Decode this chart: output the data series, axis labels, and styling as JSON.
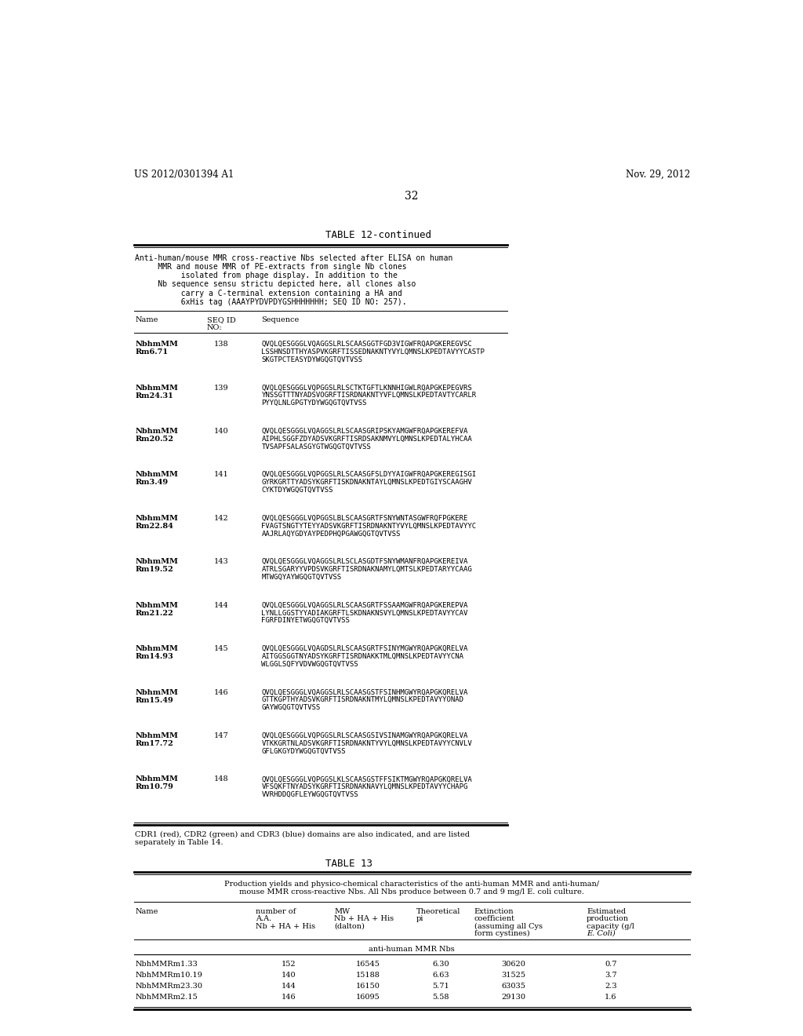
{
  "header_left": "US 2012/0301394 A1",
  "header_right": "Nov. 29, 2012",
  "page_number": "32",
  "table12_title": "TABLE 12-continued",
  "table12_caption_lines": [
    "Anti-human/mouse MMR cross-reactive Nbs selected after ELISA on human",
    "     MMR and mouse MMR of PE-extracts from single Nb clones",
    "          isolated from phage display. In addition to the",
    "     Nb sequence sensu strictu depicted here, all clones also",
    "          carry a C-terminal extension containing a HA and",
    "          6xHis tag (AAAYPYDVPDYGSHHHHHHH; SEQ ID NO: 257)."
  ],
  "sequences": [
    {
      "name1": "NbhmMM",
      "name2": "Rm6.71",
      "seq_id": "138",
      "seq_lines": [
        "QVQLQESGGGLVQAGGSLRLSCAASGGTFGD3VIGWFRQAPGKEREGVSC",
        "LSSHNSDTTHYASPVKGRFTISSEDNAKNTYVYLQMNSLKPEDTAVYYCASTP",
        "SKGTPCTEASYDYWGQGTQVTVSS"
      ]
    },
    {
      "name1": "NbhmMM",
      "name2": "Rm24.31",
      "seq_id": "139",
      "seq_lines": [
        "QVQLQESGGGLVQPGGSLRLSCTKTGFTLKNNHIGWLRQAPGKEPEGVRS",
        "YNSSGTTTNYADSVOGRFTISRDNAKNTYVFLQMNSLKPEDTAVTYCARLR",
        "PYYQLNLGPGTYDYWGQGTQVTVSS"
      ]
    },
    {
      "name1": "NbhmMM",
      "name2": "Rm20.52",
      "seq_id": "140",
      "seq_lines": [
        "QVQLQESGGGLVQAGGSLRLSCAASGRIPSKYAMGWFRQAPGKEREFVA",
        "AIPHLSGGFZDYADSVKGRFTISRDSAKNMVYLQMNSLKPEDTALYHCAA",
        "TVSAPFSALASGYGTWGQGTQVTVSS"
      ]
    },
    {
      "name1": "NbhmMM",
      "name2": "Rm3.49",
      "seq_id": "141",
      "seq_lines": [
        "QVQLQESGGGLVQPGGSLRLSCAASGFSLDYYAIGWFRQAPGKEREGISGI",
        "GYRKGRTTYADSYKGRFTISKDNAKNTAYLQMNSLKPEDTGIYSCAAGHV",
        "CYKTDYWGQGTQVTVSS"
      ]
    },
    {
      "name1": "NbhmMM",
      "name2": "Rm22.84",
      "seq_id": "142",
      "seq_lines": [
        "QVQLQESGGGLVQPGGSLBLSCAASGRTFSNYWNTASGWFRQFPGKERE",
        "FVAGTSNGTYTEYYADSVKGRFTISRDNAKNTYVYLQMNSLKPEDTAVYYC",
        "AAJRLAQYGDYAYPEDPHQPGAWGQGTQVTVSS"
      ]
    },
    {
      "name1": "NbhmMM",
      "name2": "Rm19.52",
      "seq_id": "143",
      "seq_lines": [
        "QVQLQESGGGLVQAGGSLRLSCLASGDTFSNYWMANFRQAPGKEREIVA",
        "ATRLSGARYYVPDSVKGRFTISRDNAKNAMYLQMTSLKPEDTARYYCAAG",
        "MTWGQYAYWGQGTQVTVSS"
      ]
    },
    {
      "name1": "NbhmMM",
      "name2": "Rm21.22",
      "seq_id": "144",
      "seq_lines": [
        "QVQLQESGGGLVQAGGSLRLSCAASGRTFSSAAMGWFRQAPGKEREPVA",
        "LYNLLGGSTYYADIAKGRFTLSKDNAKNSVYLQMNSLKPEDTAVYYCAV",
        "FGRFDINYETWGQGTQVTVSS"
      ]
    },
    {
      "name1": "NbhmMM",
      "name2": "Rm14.93",
      "seq_id": "145",
      "seq_lines": [
        "QVQLQESGGGLVQAGDSLRLSCAASGRTFSINYMGWYRQAPGKQRELVA",
        "AITGGSGGTNYADSYKGRFTISRDNAKKTMLQMNSLKPEDTAVYYCNA",
        "WLGGLSQFYVDVWGQGTQVTVSS"
      ]
    },
    {
      "name1": "NbhmMM",
      "name2": "Rm15.49",
      "seq_id": "146",
      "seq_lines": [
        "QVQLQESGGGLVQAGGSLRLSCAASGSTFSINHMGWYRQAPGKQRELVA",
        "GTTKGPTHYADSVKGRFTISRDNAKNTMYLQMNSLKPEDTAVYYONAD",
        "GAYWGQGTQVTVSS"
      ]
    },
    {
      "name1": "NbhmMM",
      "name2": "Rm17.72",
      "seq_id": "147",
      "seq_lines": [
        "QVQLQESGGGLVQPGGSLRLSCAASGSIVSINAMGWYRQAPGKQRELVA",
        "VTKKGRTNLADSVKGRFTISRDNAKNTYVYLQMNSLKPEDTAVYYCNVLV",
        "GFLGKGYDYWGQGTQVTVSS"
      ]
    },
    {
      "name1": "NbhmMM",
      "name2": "Rm10.79",
      "seq_id": "148",
      "seq_lines": [
        "QVQLQESGGGLVQPGGSLKLSCAASGSTFFSIKTMGWYRQAPGKQRELVA",
        "VFSQKFTNYADSYKGRFTISRDNAKNAVYLQMNSLKPEDTAVYYCHAPG",
        "VVRHDDQGFLEYWGQGTQVTVSS"
      ]
    }
  ],
  "table12_footnote_lines": [
    "CDR1 (red), CDR2 (green) and CDR3 (blue) domains are also indicated, and are listed",
    "separately in Table 14."
  ],
  "table13_title": "TABLE 13",
  "table13_caption_lines": [
    "Production yields and physico-chemical characteristics of the anti-human MMR and anti-human/",
    "mouse MMR cross-reactive Nbs. All Nbs produce between 0.7 and 9 mg/l E. coli culture."
  ],
  "table13_section": "anti-human MMR Nbs",
  "table13_data": [
    [
      "NbhMMRm1.33",
      "152",
      "16545",
      "6.30",
      "30620",
      "0.7"
    ],
    [
      "NbhMMRm10.19",
      "140",
      "15188",
      "6.63",
      "31525",
      "3.7"
    ],
    [
      "NbhMMRm23.30",
      "144",
      "16150",
      "5.71",
      "63035",
      "2.3"
    ],
    [
      "NbhMMRm2.15",
      "146",
      "16095",
      "5.58",
      "29130",
      "1.6"
    ]
  ],
  "bg_color": "#ffffff"
}
